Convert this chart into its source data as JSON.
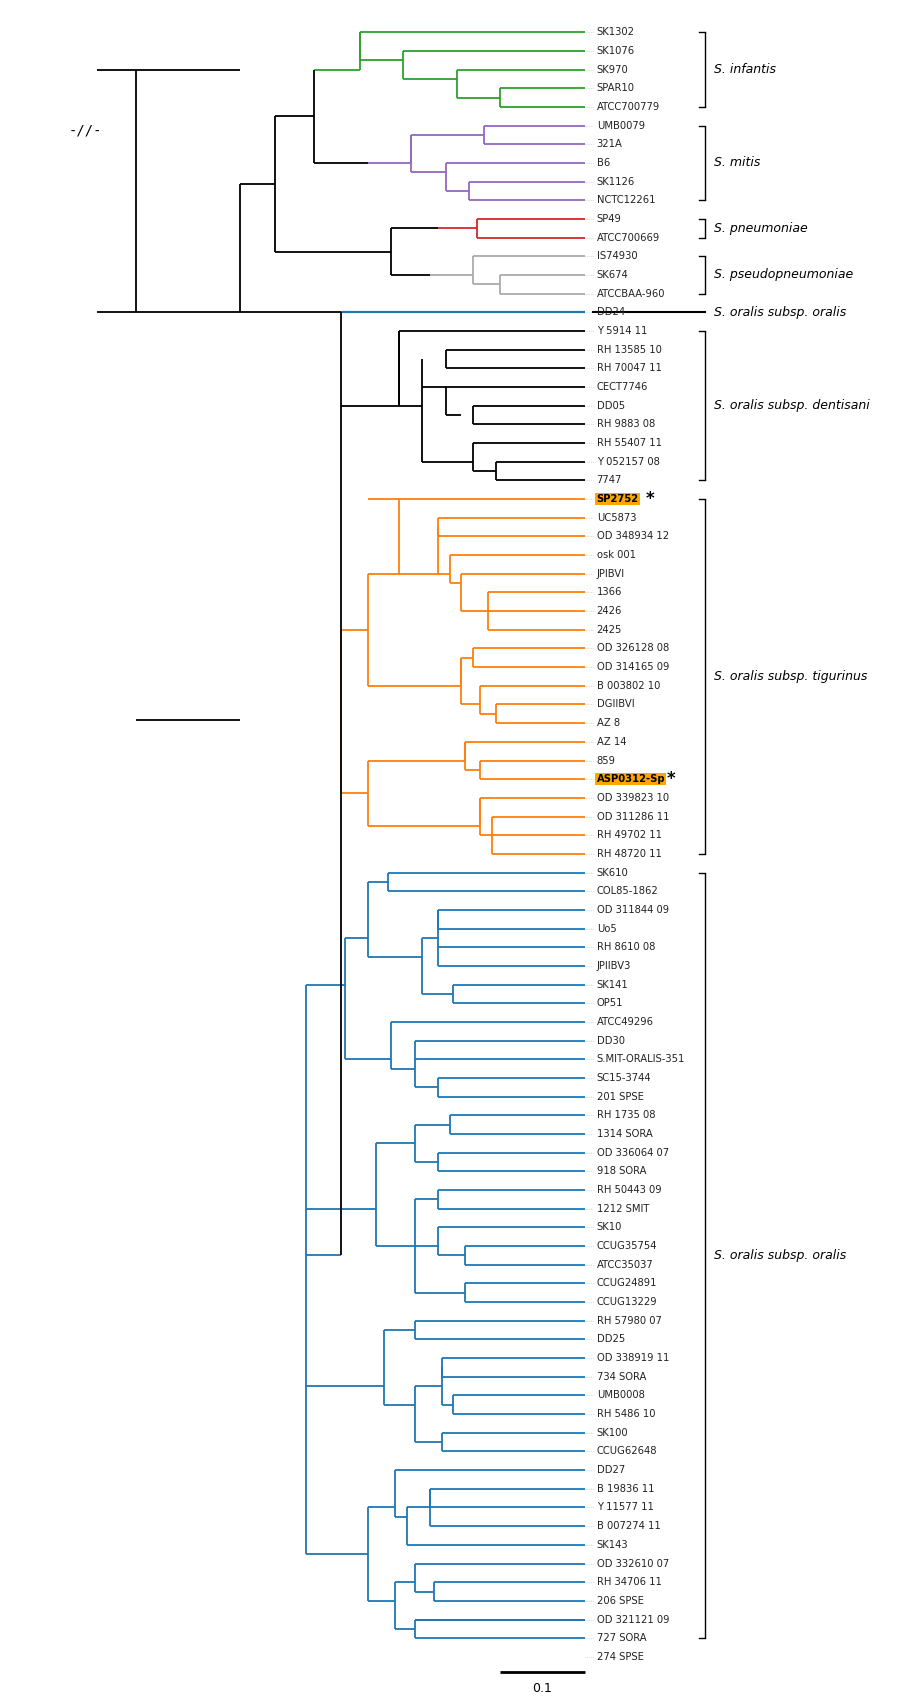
{
  "figsize": [
    9.0,
    17.02
  ],
  "dpi": 100,
  "leaf_labels": [
    "SK1302",
    "SK1076",
    "SK970",
    "SPAR10",
    "ATCC700779",
    "UMB0079",
    "321A",
    "B6",
    "SK1126",
    "NCTC12261",
    "SP49",
    "ATCC700669",
    "IS74930",
    "SK674",
    "ATCCBAA-960",
    "DD24",
    "Y 5914 11",
    "RH 13585 10",
    "RH 70047 11",
    "CECT7746",
    "DD05",
    "RH 9883 08",
    "RH 55407 11",
    "Y 052157 08",
    "7747",
    "SP2752",
    "UC5873",
    "OD 348934 12",
    "osk 001",
    "JPIBVI",
    "1366",
    "2426",
    "2425",
    "OD 326128 08",
    "OD 314165 09",
    "B 003802 10",
    "DGIIBVI",
    "AZ 8",
    "AZ 14",
    "859",
    "ASP0312-Sp",
    "OD 339823 10",
    "OD 311286 11",
    "RH 49702 11",
    "RH 48720 11",
    "SK610",
    "COL85-1862",
    "OD 311844 09",
    "Uo5",
    "RH 8610 08",
    "JPIIBV3",
    "SK141",
    "OP51",
    "ATCC49296",
    "DD30",
    "S.MIT-ORALIS-351",
    "SC15-3744",
    "201 SPSE",
    "RH 1735 08",
    "1314 SORA",
    "OD 336064 07",
    "918 SORA",
    "RH 50443 09",
    "1212 SMIT",
    "SK10",
    "CCUG35754",
    "ATCC35037",
    "CCUG24891",
    "CCUG13229",
    "RH 57980 07",
    "DD25",
    "OD 338919 11",
    "734 SORA",
    "UMB0008",
    "RH 5486 10",
    "SK100",
    "CCUG62648",
    "DD27",
    "B 19836 11",
    "Y 11577 11",
    "B 007274 11",
    "SK143",
    "OD 332610 07",
    "RH 34706 11",
    "206 SPSE",
    "OD 321121 09",
    "727 SORA",
    "274 SPSE"
  ],
  "highlighted": [
    "SP2752",
    "ASP0312-Sp"
  ],
  "highlight_bg": "#FFA500",
  "clade_labels": [
    {
      "r1": 0,
      "r2": 4,
      "text": "S. infantis"
    },
    {
      "r1": 5,
      "r2": 9,
      "text": "S. mitis"
    },
    {
      "r1": 10,
      "r2": 11,
      "text": "S. pneumoniae"
    },
    {
      "r1": 12,
      "r2": 14,
      "text": "S. pseudopneumoniae"
    },
    {
      "r1": 15,
      "r2": 15,
      "text": "S. oralis subsp. oralis",
      "hline": true
    },
    {
      "r1": 16,
      "r2": 24,
      "text": "S. oralis subsp. dentisani"
    },
    {
      "r1": 25,
      "r2": 44,
      "text": "S. oralis subsp. tigurinus"
    },
    {
      "r1": 45,
      "r2": 86,
      "text": "S. oralis subsp. oralis"
    }
  ],
  "colors": {
    "green": "#2ca02c",
    "purple": "#9467bd",
    "red": "#d62728",
    "gray": "#aaaaaa",
    "black": "#000000",
    "orange": "#ff7f0e",
    "blue": "#1f77b4"
  },
  "leaf_colors": [
    "#2ca02c",
    "#2ca02c",
    "#2ca02c",
    "#2ca02c",
    "#2ca02c",
    "#9467bd",
    "#9467bd",
    "#9467bd",
    "#9467bd",
    "#9467bd",
    "#d62728",
    "#d62728",
    "#aaaaaa",
    "#aaaaaa",
    "#aaaaaa",
    "#1f77b4",
    "#000000",
    "#000000",
    "#000000",
    "#000000",
    "#000000",
    "#000000",
    "#000000",
    "#000000",
    "#000000",
    "#ff7f0e",
    "#ff7f0e",
    "#ff7f0e",
    "#ff7f0e",
    "#ff7f0e",
    "#ff7f0e",
    "#ff7f0e",
    "#ff7f0e",
    "#ff7f0e",
    "#ff7f0e",
    "#ff7f0e",
    "#ff7f0e",
    "#ff7f0e",
    "#ff7f0e",
    "#ff7f0e",
    "#ff7f0e",
    "#ff7f0e",
    "#ff7f0e",
    "#ff7f0e",
    "#ff7f0e",
    "#1f77b4",
    "#1f77b4",
    "#1f77b4",
    "#1f77b4",
    "#1f77b4",
    "#1f77b4",
    "#1f77b4",
    "#1f77b4",
    "#1f77b4",
    "#1f77b4",
    "#1f77b4",
    "#1f77b4",
    "#1f77b4",
    "#1f77b4",
    "#1f77b4",
    "#1f77b4",
    "#1f77b4",
    "#1f77b4",
    "#1f77b4",
    "#1f77b4",
    "#1f77b4",
    "#1f77b4",
    "#1f77b4",
    "#1f77b4",
    "#1f77b4",
    "#1f77b4",
    "#1f77b4",
    "#1f77b4",
    "#1f77b4",
    "#1f77b4",
    "#1f77b4",
    "#1f77b4",
    "#1f77b4",
    "#1f77b4",
    "#1f77b4",
    "#1f77b4",
    "#1f77b4",
    "#1f77b4",
    "#1f77b4",
    "#1f77b4",
    "#1f77b4",
    "#1f77b4",
    "#1f77b4"
  ]
}
